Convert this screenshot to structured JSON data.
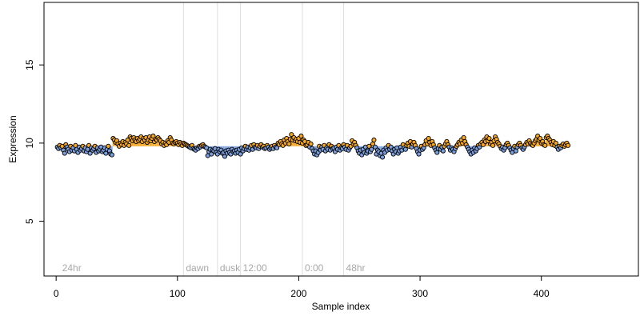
{
  "chart_data": {
    "type": "scatter",
    "title": "",
    "xlabel": "Sample index",
    "ylabel": "Expression",
    "xlim": [
      -10,
      480
    ],
    "ylim": [
      1.5,
      19
    ],
    "baseline": 9.8,
    "x_ticks": [
      0,
      100,
      200,
      300,
      400
    ],
    "y_ticks": [
      5,
      10,
      15
    ],
    "x_tick_labels": [
      "0",
      "100",
      "200",
      "300",
      "400"
    ],
    "y_tick_labels": [
      "5",
      "10",
      "15"
    ],
    "grid": false,
    "colors": {
      "above_baseline": "#f5a623",
      "below_baseline": "#7b9fdc",
      "point_stroke": "#000000",
      "marker_line": "#dddddd",
      "marker_label": "#a8a8a8"
    },
    "annotations": [
      {
        "x": 3,
        "label": "24hr",
        "line": false
      },
      {
        "x": 105,
        "label": "dawn",
        "line": true
      },
      {
        "x": 133,
        "label": "dusk",
        "line": true
      },
      {
        "x": 152,
        "label": "12:00",
        "line": true
      },
      {
        "x": 203,
        "label": "0:00",
        "line": true
      },
      {
        "x": 237,
        "label": "48hr",
        "line": true
      }
    ],
    "series": [
      {
        "values": [
          9.75,
          9.65,
          9.85,
          9.7,
          9.8,
          9.55,
          9.35,
          9.9,
          9.75,
          9.6,
          9.45,
          9.8,
          9.55,
          9.7,
          9.5,
          9.85,
          9.6,
          9.4,
          9.75,
          9.55,
          9.65,
          9.8,
          9.5,
          9.7,
          9.45,
          9.6,
          9.85,
          9.35,
          9.7,
          9.55,
          9.65,
          9.8,
          9.4,
          9.7,
          9.5,
          9.6,
          9.75,
          9.45,
          9.55,
          9.7,
          9.35,
          9.6,
          9.8,
          9.5,
          9.3,
          9.25,
          10.3,
          10.2,
          10.05,
          10.15,
          9.95,
          9.8,
          10.0,
          9.9,
          10.1,
          9.85,
          10.05,
          9.95,
          10.2,
          9.85,
          10.4,
          10.3,
          10.15,
          10.35,
          10.2,
          10.1,
          10.3,
          10.15,
          10.25,
          10.4,
          10.1,
          10.3,
          10.2,
          10.35,
          10.05,
          10.2,
          10.4,
          10.15,
          10.3,
          10.45,
          10.1,
          10.25,
          10.2,
          10.35,
          10.25,
          10.15,
          9.95,
          10.05,
          9.85,
          10.0,
          9.9,
          10.15,
          10.05,
          10.35,
          10.2,
          10.0,
          9.95,
          10.05,
          10.1,
          10.0,
          9.9,
          10.05,
          9.95,
          9.85,
          10.0,
          9.95,
          9.9,
          9.85,
          9.8,
          9.75,
          9.7,
          9.85,
          9.65,
          9.6,
          9.55,
          9.7,
          9.65,
          9.8,
          9.75,
          9.85,
          9.9,
          9.8,
          9.75,
          9.7,
          9.2,
          9.45,
          9.6,
          9.3,
          9.55,
          9.5,
          9.65,
          9.4,
          9.3,
          9.6,
          9.45,
          9.55,
          9.35,
          9.4,
          9.15,
          9.5,
          9.35,
          9.55,
          9.4,
          9.3,
          9.6,
          9.45,
          9.5,
          9.35,
          9.55,
          9.4,
          9.6,
          9.3,
          9.7,
          9.5,
          9.65,
          9.8,
          9.6,
          9.75,
          9.55,
          9.7,
          9.85,
          9.6,
          9.9,
          9.75,
          9.7,
          9.85,
          9.65,
          9.8,
          9.9,
          9.75,
          9.8,
          9.65,
          9.7,
          9.85,
          9.75,
          9.6,
          9.7,
          9.8,
          9.65,
          9.85,
          9.75,
          9.7,
          10.0,
          9.9,
          10.1,
          9.95,
          9.85,
          10.2,
          10.0,
          10.3,
          10.1,
          9.95,
          10.25,
          10.55,
          10.2,
          10.35,
          10.15,
          10.25,
          10.1,
          10.3,
          10.05,
          10.45,
          10.0,
          10.2,
          10.1,
          9.85,
          9.9,
          10.05,
          9.75,
          9.95,
          9.65,
          9.5,
          9.3,
          9.5,
          9.25,
          9.4,
          9.8,
          9.55,
          9.75,
          9.6,
          9.85,
          9.5,
          9.7,
          9.6,
          9.9,
          9.55,
          9.8,
          9.65,
          9.7,
          9.45,
          9.75,
          9.6,
          9.85,
          9.55,
          9.7,
          9.65,
          9.9,
          9.75,
          9.6,
          9.85,
          9.55,
          9.7,
          9.8,
          10.15,
          9.95,
          10.05,
          9.85,
          9.7,
          9.5,
          9.35,
          9.55,
          9.25,
          9.6,
          9.4,
          9.75,
          9.35,
          9.5,
          9.8,
          9.45,
          9.6,
          9.95,
          10.2,
          9.75,
          9.3,
          9.55,
          9.45,
          9.2,
          9.35,
          9.1,
          9.55,
          9.4,
          9.7,
          9.55,
          9.85,
          9.6,
          9.75,
          9.5,
          9.3,
          9.6,
          9.45,
          9.7,
          9.35,
          9.5,
          9.75,
          9.55,
          9.9,
          9.7,
          9.6,
          9.85,
          10.0,
          9.8,
          10.1,
          9.75,
          9.95,
          10.05,
          9.85,
          9.65,
          9.45,
          9.3,
          9.55,
          9.8,
          9.6,
          9.7,
          9.9,
          10.15,
          9.95,
          10.3,
          10.05,
          9.85,
          10.1,
          9.9,
          9.7,
          9.55,
          9.4,
          9.65,
          9.85,
          9.6,
          9.75,
          9.5,
          9.8,
          9.95,
          10.1,
          9.9,
          9.75,
          9.55,
          9.7,
          9.6,
          9.45,
          9.65,
          9.8,
          9.9,
          10.05,
          9.95,
          10.2,
          10.0,
          10.35,
          10.1,
          9.9,
          9.75,
          9.6,
          9.45,
          9.3,
          9.55,
          9.4,
          9.7,
          9.5,
          9.65,
          9.85,
          9.75,
          9.95,
          10.05,
          9.9,
          10.2,
          10.1,
          10.4,
          10.15,
          10.3,
          9.95,
          10.05,
          9.85,
          10.15,
          10.4,
          10.25,
          10.05,
          9.95,
          9.8,
          9.65,
          9.75,
          9.55,
          9.7,
          9.9,
          10.0,
          9.85,
          9.7,
          9.55,
          9.4,
          9.65,
          9.8,
          9.5,
          9.75,
          9.9,
          10.0,
          9.85,
          9.7,
          9.6,
          9.75,
          9.9,
          10.05,
          9.95,
          10.15,
          10.0,
          9.9,
          9.85,
          10.0,
          10.15,
          10.25,
          10.45,
          10.2,
          10.3,
          10.0,
          10.1,
          9.9,
          9.85,
          10.35,
          10.45,
          10.3,
          10.2,
          10.05,
          9.9,
          10.1,
          9.85,
          10.0,
          9.75,
          9.6,
          9.8,
          9.7,
          9.85,
          9.95,
          9.8,
          9.9,
          10.0,
          9.85
        ]
      }
    ]
  }
}
